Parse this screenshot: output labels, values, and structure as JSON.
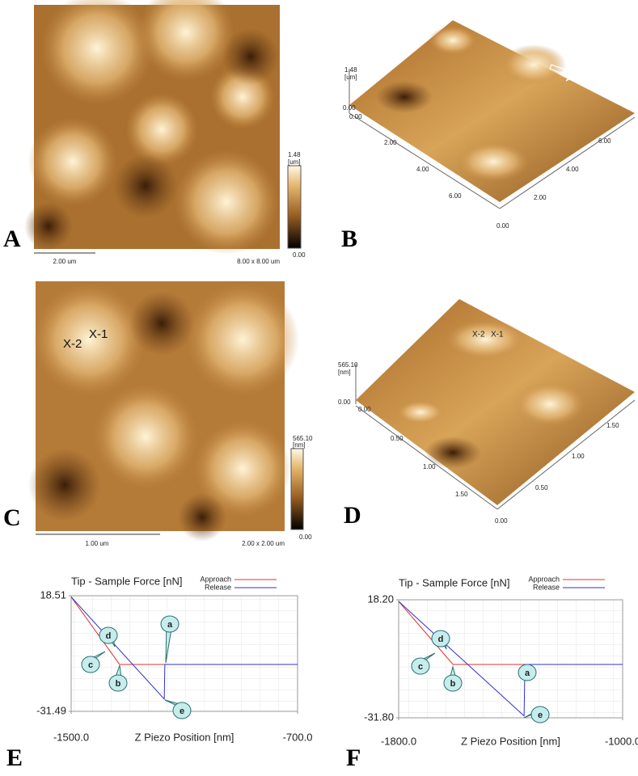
{
  "panel_labels": [
    "A",
    "B",
    "C",
    "D",
    "E",
    "F"
  ],
  "image_A": {
    "scale_max": "1.48",
    "scale_unit": "[um]",
    "scale_min": "0.00",
    "scale_bar": "2.00 um",
    "size": "8.00 x 8.00 um"
  },
  "image_B": {
    "z_max": "1.48",
    "z_unit": "[um]",
    "z_min": "0.00",
    "axis_left": [
      "0.00",
      "2.00",
      "4.00",
      "6.00"
    ],
    "axis_right": [
      "0.00",
      "2.00",
      "4.00",
      "6.00"
    ]
  },
  "image_C": {
    "markers": [
      "X-2",
      "X-1"
    ],
    "scale_max": "565.10",
    "scale_unit": "[nm]",
    "scale_min": "0.00",
    "scale_bar": "1.00 um",
    "size": "2.00 x 2.00 um"
  },
  "image_D": {
    "markers": [
      "X-2",
      "X-1"
    ],
    "z_max": "565.10",
    "z_unit": "[nm]",
    "z_min": "0.00",
    "axis_left": [
      "0.00",
      "0.50",
      "1.00",
      "1.50"
    ],
    "axis_right": [
      "0.00",
      "0.50",
      "1.00",
      "1.50"
    ]
  },
  "chart_data": [
    {
      "type": "line",
      "title": "Tip - Sample Force [nN]",
      "x_label": "Z Piezo Position [nm]",
      "xlim": [
        -1500,
        -700
      ],
      "xticks": [
        {
          "value": -1500,
          "label": "-1500.0"
        },
        {
          "value": -700,
          "label": "-700.0"
        }
      ],
      "ylim": [
        -31.49,
        18.51
      ],
      "yticks": [
        18.51,
        -31.49
      ],
      "grid": true,
      "series": [
        {
          "name": "Approach",
          "color": "#e03030",
          "x": [
            -1500,
            -1329,
            -700
          ],
          "values": [
            18,
            -11.2,
            -11.2
          ]
        },
        {
          "name": "Release",
          "color": "#3030d0",
          "x": [
            -1500,
            -1171,
            -1169,
            -700
          ],
          "values": [
            18,
            -26.2,
            -11.2,
            -11.2
          ]
        }
      ],
      "annotations": [
        "a",
        "b",
        "c",
        "d",
        "e"
      ]
    },
    {
      "type": "line",
      "title": "Tip - Sample Force [nN]",
      "x_label": "Z Piezo Position [nm]",
      "xlim": [
        -1800,
        -1000
      ],
      "xticks": [
        {
          "value": -1800,
          "label": "-1800.0"
        },
        {
          "value": -1000,
          "label": "-1000.0"
        }
      ],
      "ylim": [
        -31.8,
        18.2
      ],
      "yticks": [
        {
          "value": 18.2,
          "label": "18.20"
        },
        {
          "value": -31.8,
          "label": "-31.80"
        }
      ],
      "grid": true,
      "series": [
        {
          "name": "Approach",
          "color": "#e03030",
          "x": [
            -1800,
            -1606,
            -1000
          ],
          "values": [
            17.5,
            -9.2,
            -9.2
          ]
        },
        {
          "name": "Release",
          "color": "#3030d0",
          "x": [
            -1800,
            -1352,
            -1349,
            -1000
          ],
          "values": [
            17.5,
            -31,
            -9.2,
            -9.2
          ]
        }
      ],
      "annotations": [
        "a",
        "b",
        "c",
        "d",
        "e"
      ]
    }
  ]
}
